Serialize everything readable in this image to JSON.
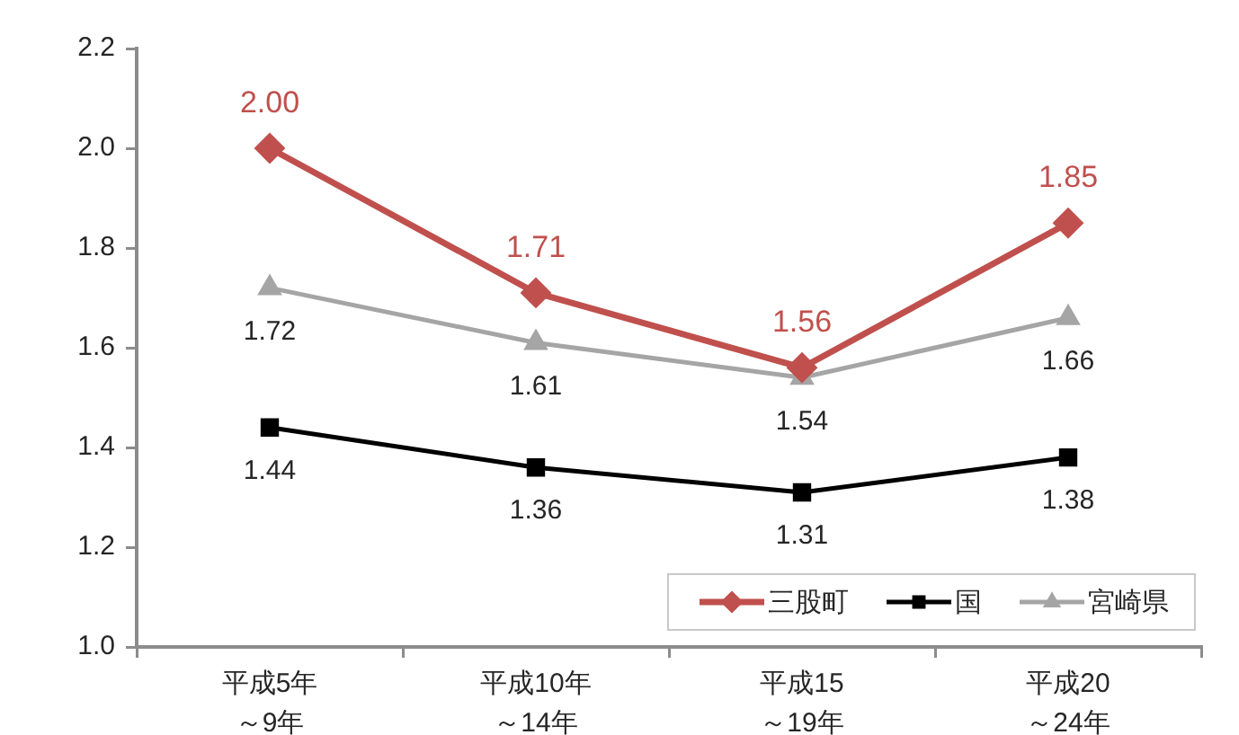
{
  "chart_data": {
    "type": "line",
    "categories": [
      "平成5年～9年",
      "平成10年～14年",
      "平成15～19年",
      "平成20～24年"
    ],
    "series": [
      {
        "name": "三股町",
        "color": "#c0504d",
        "marker": "diamond",
        "values": [
          2.0,
          1.71,
          1.56,
          1.85
        ],
        "value_labels": [
          "2.00",
          "1.71",
          "1.56",
          "1.85"
        ]
      },
      {
        "name": "国",
        "color": "#000000",
        "marker": "square",
        "values": [
          1.44,
          1.36,
          1.31,
          1.38
        ],
        "value_labels": [
          "1.44",
          "1.36",
          "1.31",
          "1.38"
        ]
      },
      {
        "name": "宮崎県",
        "color": "#a5a5a5",
        "marker": "triangle",
        "values": [
          1.72,
          1.61,
          1.54,
          1.66
        ],
        "value_labels": [
          "1.72",
          "1.61",
          "1.54",
          "1.66"
        ]
      }
    ],
    "ylim": [
      1,
      2.2
    ],
    "yticks": [
      {
        "value": 1,
        "label": "1.0"
      },
      1.2,
      1.4,
      1.6,
      1.8,
      {
        "value": 2,
        "label": "2.0"
      },
      2.2
    ],
    "grid": false,
    "legend": "bottom right",
    "line_style": "solid"
  }
}
